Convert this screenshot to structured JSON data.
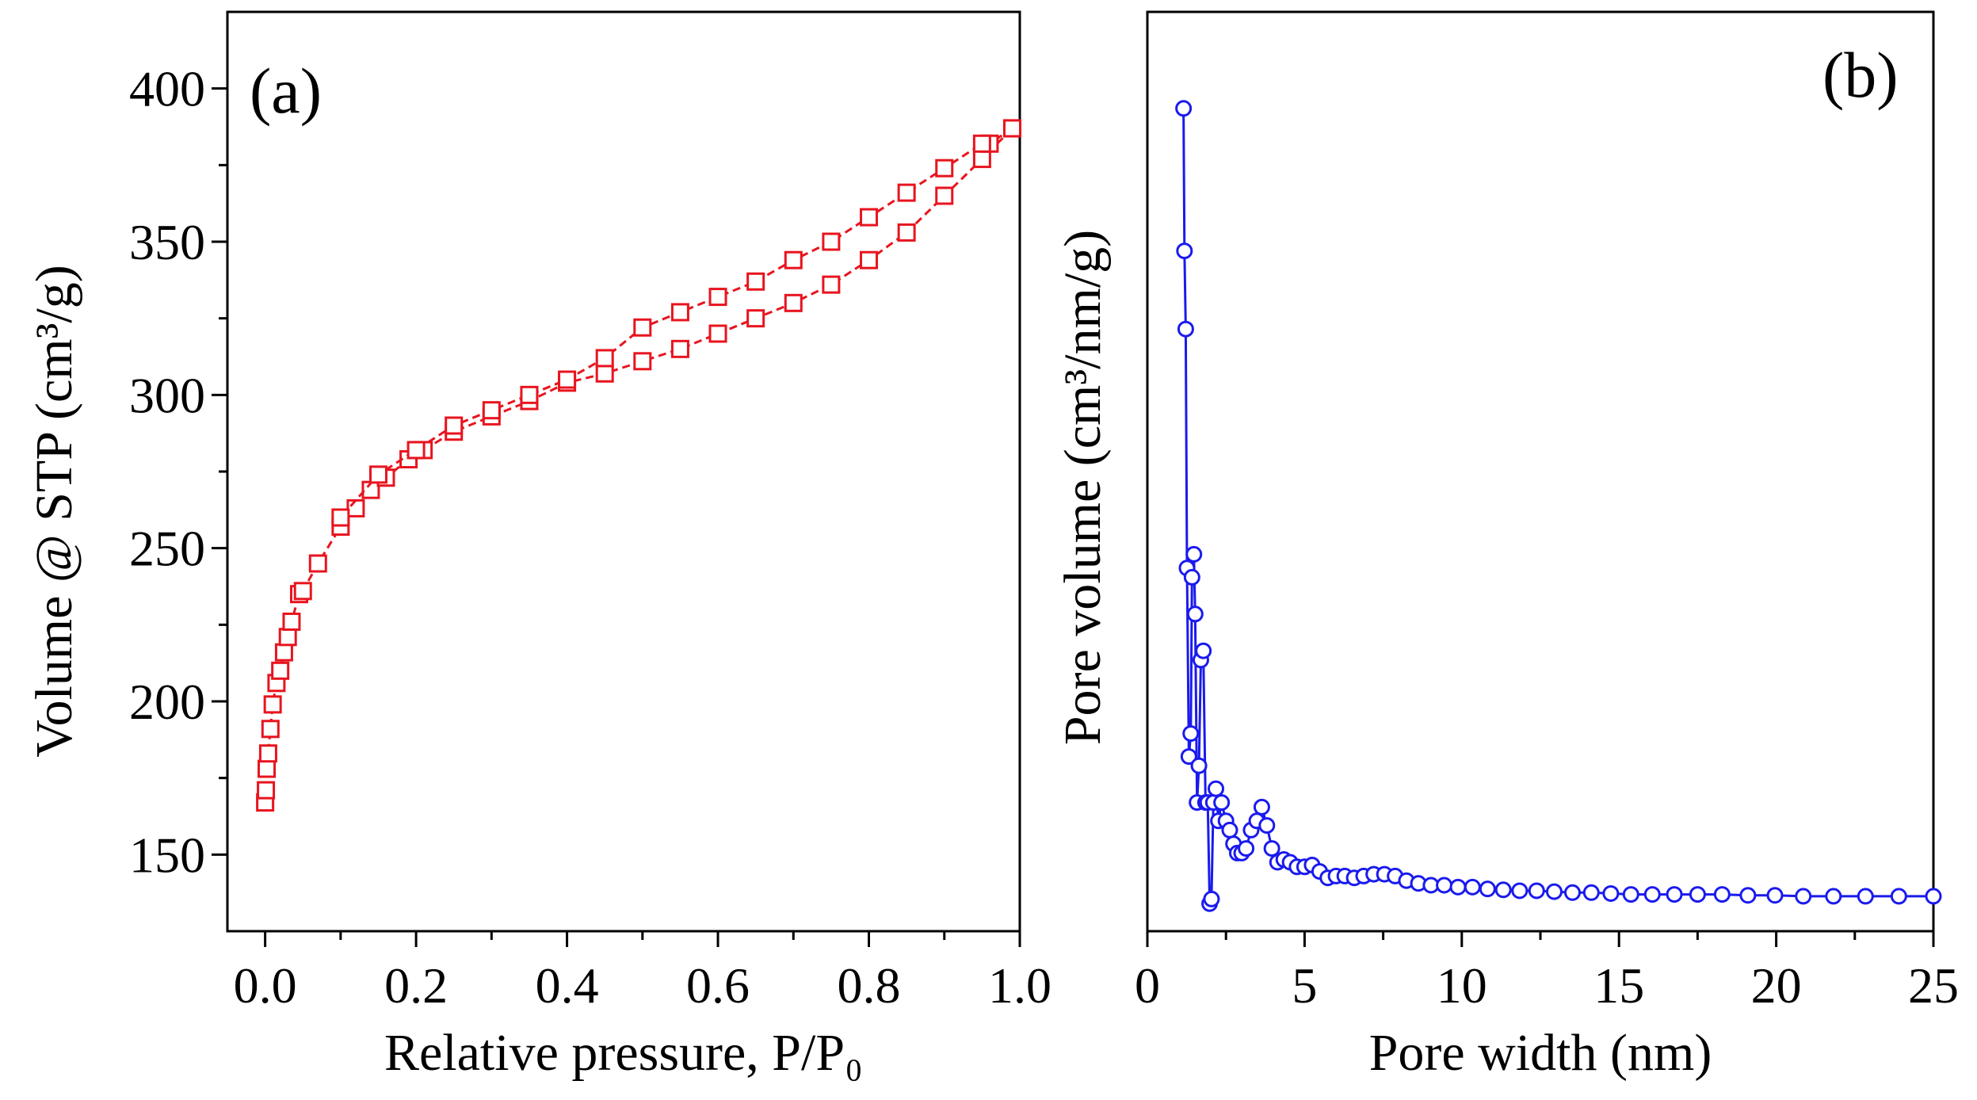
{
  "chart_data": [
    {
      "panel_label": "(a)",
      "type": "line",
      "xlabel": "Relative pressure, P/P₀",
      "ylabel": "Volume @ STP (cm³/g)",
      "xlim": [
        -0.05,
        1.0
      ],
      "ylim": [
        125,
        425
      ],
      "xticks": [
        "0.0",
        "0.2",
        "0.4",
        "0.6",
        "0.8",
        "1.0"
      ],
      "yticks": [
        "150",
        "200",
        "250",
        "300",
        "350",
        "400"
      ],
      "marker": "open-square",
      "color": "#e8141e",
      "series": [
        {
          "x": [
            0.0,
            0.001,
            0.002,
            0.004,
            0.007,
            0.01,
            0.015,
            0.02,
            0.025,
            0.03,
            0.035,
            0.045,
            0.05,
            0.07,
            0.1,
            0.12,
            0.14,
            0.16,
            0.19,
            0.21,
            0.25,
            0.3,
            0.35,
            0.4,
            0.45,
            0.5,
            0.55,
            0.6,
            0.65,
            0.7,
            0.75,
            0.8,
            0.85,
            0.9,
            0.95,
            0.99
          ],
          "y": [
            167,
            171,
            178,
            183,
            191,
            199,
            206,
            210,
            216,
            221,
            226,
            235,
            236,
            245,
            257,
            263,
            269,
            273,
            279,
            282,
            288,
            293,
            298,
            304,
            307,
            311,
            315,
            320,
            325,
            330,
            336,
            344,
            353,
            365,
            377,
            387
          ]
        },
        {
          "x": [
            0.99,
            0.96,
            0.95,
            0.9,
            0.85,
            0.8,
            0.75,
            0.7,
            0.65,
            0.6,
            0.55,
            0.5,
            0.45,
            0.4,
            0.35,
            0.3,
            0.25,
            0.2,
            0.15,
            0.1
          ],
          "y": [
            387,
            382,
            382,
            374,
            366,
            358,
            350,
            344,
            337,
            332,
            327,
            322,
            312,
            305,
            300,
            295,
            290,
            282,
            274,
            260
          ]
        }
      ]
    },
    {
      "panel_label": "(b)",
      "type": "line",
      "xlabel": "Pore width (nm)",
      "ylabel": "Pore volume (cm³/nm/g)",
      "xlim": [
        0,
        25
      ],
      "ylim": [
        0,
        1
      ],
      "xticks": [
        "0",
        "5",
        "10",
        "15",
        "20",
        "25"
      ],
      "yticks": [],
      "marker": "open-circle",
      "color": "#1a1aee",
      "series": [
        {
          "x": [
            1.15,
            1.18,
            1.22,
            1.26,
            1.32,
            1.38,
            1.42,
            1.48,
            1.52,
            1.58,
            1.64,
            1.7,
            1.78,
            1.85,
            1.92,
            1.98,
            2.04,
            2.1,
            2.18,
            2.26,
            2.36,
            2.5,
            2.62,
            2.74,
            2.86,
            3.0,
            3.14,
            3.3,
            3.48,
            3.64,
            3.8,
            3.96,
            4.14,
            4.34,
            4.54,
            4.76,
            5.0,
            5.24,
            5.48,
            5.74,
            6.0,
            6.28,
            6.58,
            6.88,
            7.2,
            7.54,
            7.88,
            8.24,
            8.62,
            9.02,
            9.44,
            9.88,
            10.34,
            10.82,
            11.32,
            11.84,
            12.38,
            12.94,
            13.52,
            14.12,
            14.74,
            15.38,
            16.06,
            16.76,
            17.5,
            18.28,
            19.1,
            19.96,
            20.86,
            21.82,
            22.84,
            23.9,
            25.0
          ],
          "y": [
            0.895,
            0.74,
            0.655,
            0.395,
            0.19,
            0.215,
            0.385,
            0.41,
            0.345,
            0.14,
            0.18,
            0.295,
            0.305,
            0.14,
            0.14,
            0.03,
            0.035,
            0.14,
            0.155,
            0.12,
            0.14,
            0.12,
            0.11,
            0.095,
            0.085,
            0.085,
            0.09,
            0.11,
            0.12,
            0.135,
            0.115,
            0.09,
            0.075,
            0.078,
            0.075,
            0.07,
            0.07,
            0.072,
            0.065,
            0.058,
            0.06,
            0.06,
            0.058,
            0.06,
            0.062,
            0.062,
            0.06,
            0.055,
            0.052,
            0.05,
            0.05,
            0.048,
            0.048,
            0.046,
            0.045,
            0.044,
            0.044,
            0.043,
            0.042,
            0.042,
            0.041,
            0.04,
            0.04,
            0.04,
            0.04,
            0.04,
            0.039,
            0.039,
            0.038,
            0.038,
            0.038,
            0.038,
            0.038
          ]
        }
      ]
    }
  ]
}
